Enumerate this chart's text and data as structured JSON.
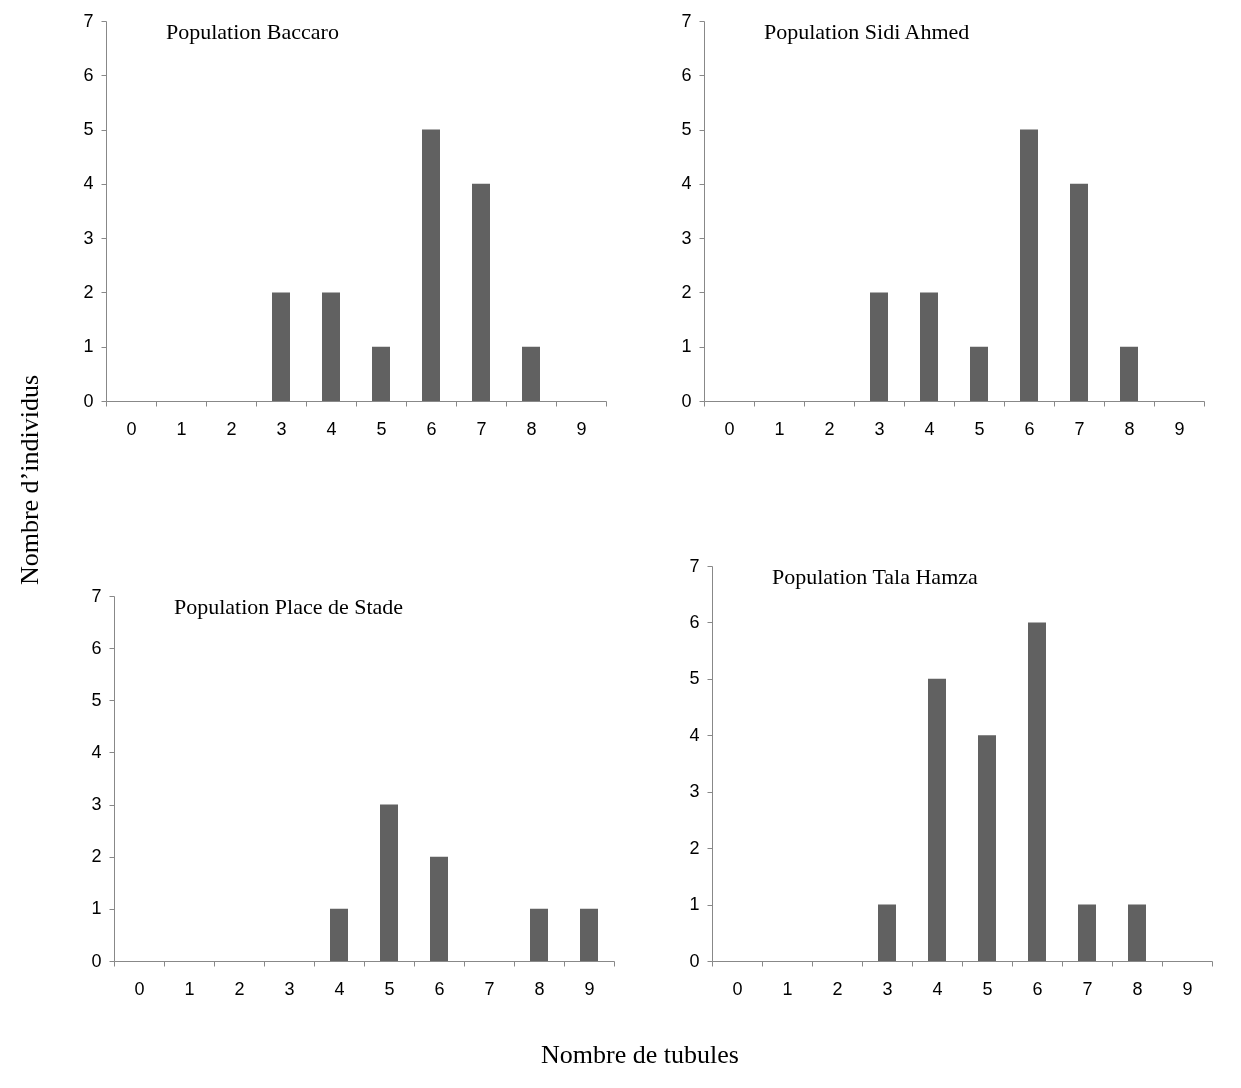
{
  "chart_data": [
    {
      "type": "bar",
      "title": "Population Baccaro",
      "ylabel": "Nombre d’individus",
      "categories": [
        "0",
        "1",
        "2",
        "3",
        "4",
        "5",
        "6",
        "7",
        "8",
        "9"
      ],
      "values": [
        0,
        0,
        0,
        2,
        2,
        1,
        5,
        4,
        1,
        0
      ],
      "color": "#616161",
      "ylim": [
        0,
        7
      ],
      "yticks": [
        0,
        1,
        2,
        3,
        4,
        5,
        6,
        7
      ]
    },
    {
      "type": "bar",
      "title": "Population Sidi Ahmed",
      "categories": [
        "0",
        "1",
        "2",
        "3",
        "4",
        "5",
        "6",
        "7",
        "8",
        "9"
      ],
      "values": [
        0,
        0,
        0,
        2,
        2,
        1,
        5,
        4,
        1,
        0
      ],
      "color": "#616161",
      "ylim": [
        0,
        7
      ],
      "yticks": [
        0,
        1,
        2,
        3,
        4,
        5,
        6,
        7
      ]
    },
    {
      "type": "bar",
      "title": "Population Place de Stade",
      "xlabel": "Nombre de tubules",
      "categories": [
        "0",
        "1",
        "2",
        "3",
        "4",
        "5",
        "6",
        "7",
        "8",
        "9"
      ],
      "values": [
        0,
        0,
        0,
        0,
        1,
        3,
        2,
        0,
        1,
        1
      ],
      "color": "#616161",
      "ylim": [
        0,
        7
      ],
      "yticks": [
        0,
        1,
        2,
        3,
        4,
        5,
        6,
        7
      ]
    },
    {
      "type": "bar",
      "title": "Population Tala Hamza",
      "categories": [
        "0",
        "1",
        "2",
        "3",
        "4",
        "5",
        "6",
        "7",
        "8",
        "9"
      ],
      "values": [
        0,
        0,
        0,
        1,
        5,
        4,
        6,
        1,
        1,
        0
      ],
      "color": "#616161",
      "ylim": [
        0,
        7
      ],
      "yticks": [
        0,
        1,
        2,
        3,
        4,
        5,
        6,
        7
      ]
    }
  ]
}
